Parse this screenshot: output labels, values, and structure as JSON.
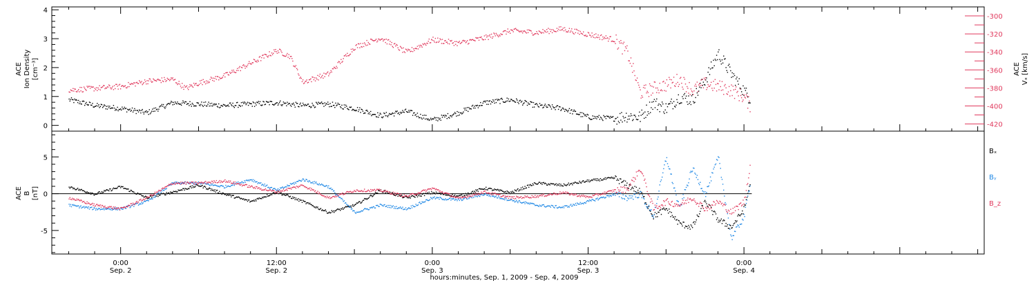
{
  "chart_data": [
    {
      "type": "scatter",
      "panel": "top",
      "ylabel_left": [
        "ACE",
        "Ion Density",
        "[cm⁻³]"
      ],
      "ylabel_right": [
        "ACE",
        "Vₓ [km/s]"
      ],
      "yticks_left": [
        "0",
        "1",
        "2",
        "3",
        "4"
      ],
      "ylim_left": [
        -0.2,
        4.1
      ],
      "yticks_right": [
        "-420",
        "-400",
        "-380",
        "-360",
        "-340",
        "-320",
        "-300"
      ],
      "ylim_right": [
        -428,
        -290
      ],
      "series": [
        {
          "axis": "left",
          "color": "#000000",
          "x": [
            -4,
            -2,
            0,
            2,
            4,
            6,
            8,
            10,
            12,
            14,
            16,
            18,
            20,
            22,
            24,
            26,
            28,
            30,
            32,
            34,
            36,
            38,
            39,
            40,
            41,
            42,
            43,
            44,
            45,
            46,
            47,
            48,
            48.5
          ],
          "values": [
            0.9,
            0.7,
            0.6,
            0.45,
            0.8,
            0.75,
            0.7,
            0.75,
            0.8,
            0.7,
            0.75,
            0.6,
            0.35,
            0.5,
            0.2,
            0.45,
            0.8,
            0.9,
            0.7,
            0.6,
            0.3,
            0.25,
            0.35,
            0.3,
            0.8,
            0.6,
            1.0,
            0.9,
            1.6,
            2.5,
            1.8,
            1.2,
            0.9
          ]
        },
        {
          "axis": "right",
          "color": "#e0385c",
          "x": [
            -4,
            -2,
            0,
            2,
            4,
            5,
            6,
            8,
            10,
            12,
            13,
            14,
            16,
            18,
            20,
            22,
            24,
            26,
            28,
            30,
            32,
            34,
            36,
            38,
            39,
            40,
            41,
            42,
            43,
            44,
            45,
            46,
            47,
            48,
            48.5
          ],
          "values": [
            -382,
            -380,
            -378,
            -372,
            -370,
            -380,
            -374,
            -366,
            -352,
            -338,
            -344,
            -373,
            -364,
            -334,
            -324,
            -340,
            -326,
            -330,
            -324,
            -316,
            -318,
            -314,
            -320,
            -326,
            -340,
            -385,
            -380,
            -376,
            -370,
            -382,
            -375,
            -378,
            -382,
            -390,
            -400
          ]
        }
      ]
    },
    {
      "type": "scatter",
      "panel": "bottom",
      "ylabel_left": [
        "ACE",
        "B",
        "[nT]"
      ],
      "yticks_left": [
        "-5",
        "0",
        "5"
      ],
      "ylim_left": [
        -8.2,
        8.5
      ],
      "series": [
        {
          "name": "Bₓ",
          "color": "#000000",
          "x": [
            -4,
            -2,
            0,
            2,
            4,
            6,
            8,
            10,
            12,
            14,
            16,
            18,
            20,
            22,
            24,
            26,
            28,
            30,
            32,
            34,
            36,
            38,
            39,
            40,
            41,
            42,
            43,
            44,
            45,
            46,
            47,
            48,
            48.5
          ],
          "values": [
            1.0,
            0.0,
            1.0,
            -0.5,
            0.3,
            1.2,
            0.0,
            -1.0,
            0.3,
            -1.0,
            -2.5,
            -1.5,
            0.5,
            -0.5,
            0.2,
            -0.3,
            0.8,
            0.2,
            1.5,
            1.2,
            1.8,
            2.2,
            1.2,
            0.3,
            -3.0,
            -2.0,
            -4.0,
            -4.5,
            -1.0,
            -3.5,
            -4.5,
            -2.0,
            2.0
          ]
        },
        {
          "name": "Bᵧ",
          "color": "#1f88e5",
          "x": [
            -4,
            -2,
            0,
            2,
            4,
            6,
            8,
            10,
            12,
            14,
            16,
            18,
            20,
            22,
            24,
            26,
            28,
            30,
            32,
            34,
            36,
            38,
            39,
            40,
            41,
            42,
            43,
            44,
            45,
            46,
            47,
            48,
            48.5
          ],
          "values": [
            -1.5,
            -2.0,
            -2.0,
            -1.0,
            1.5,
            1.5,
            1.0,
            2.0,
            0.5,
            2.0,
            1.0,
            -2.5,
            -1.5,
            -2.0,
            -0.5,
            -0.8,
            0.0,
            -0.8,
            -1.5,
            -1.8,
            -1.0,
            0.0,
            -0.5,
            0.0,
            -3.0,
            5.0,
            -2.0,
            3.5,
            0.0,
            5.0,
            -6.0,
            -3.0,
            2.0
          ]
        },
        {
          "name": "B_z",
          "color": "#e0385c",
          "x": [
            -4,
            -2,
            0,
            2,
            4,
            6,
            8,
            10,
            12,
            14,
            16,
            18,
            20,
            22,
            24,
            26,
            28,
            30,
            32,
            34,
            36,
            38,
            39,
            40,
            41,
            42,
            43,
            44,
            45,
            46,
            47,
            48,
            48.5
          ],
          "values": [
            -0.5,
            -1.5,
            -2.0,
            -0.5,
            1.5,
            1.5,
            1.8,
            1.0,
            0.3,
            1.2,
            -0.5,
            0.5,
            0.5,
            -0.3,
            0.8,
            -0.6,
            0.3,
            -0.5,
            -0.3,
            0.2,
            -0.4,
            0.5,
            0.7,
            3.5,
            -2.0,
            -1.0,
            -1.5,
            -0.5,
            -2.0,
            -1.0,
            -2.5,
            -1.0,
            4.5
          ]
        }
      ]
    }
  ],
  "x_axis": {
    "range_hours": [
      -5.3,
      66.5
    ],
    "ticks": [
      {
        "hours": 0,
        "time": "0:00",
        "date": "Sep. 2"
      },
      {
        "hours": 12,
        "time": "12:00",
        "date": "Sep. 2"
      },
      {
        "hours": 24,
        "time": "0:00",
        "date": "Sep. 3"
      },
      {
        "hours": 36,
        "time": "12:00",
        "date": "Sep. 3"
      },
      {
        "hours": 48,
        "time": "0:00",
        "date": "Sep. 4"
      }
    ],
    "title": "hours:minutes, Sep. 1, 2009 - Sep. 4, 2009"
  },
  "legend": {
    "bx": "Bₓ",
    "by": "Bᵧ",
    "bz": "B_z"
  },
  "colors": {
    "red": "#e0385c",
    "blue": "#1f88e5",
    "black": "#000000"
  }
}
